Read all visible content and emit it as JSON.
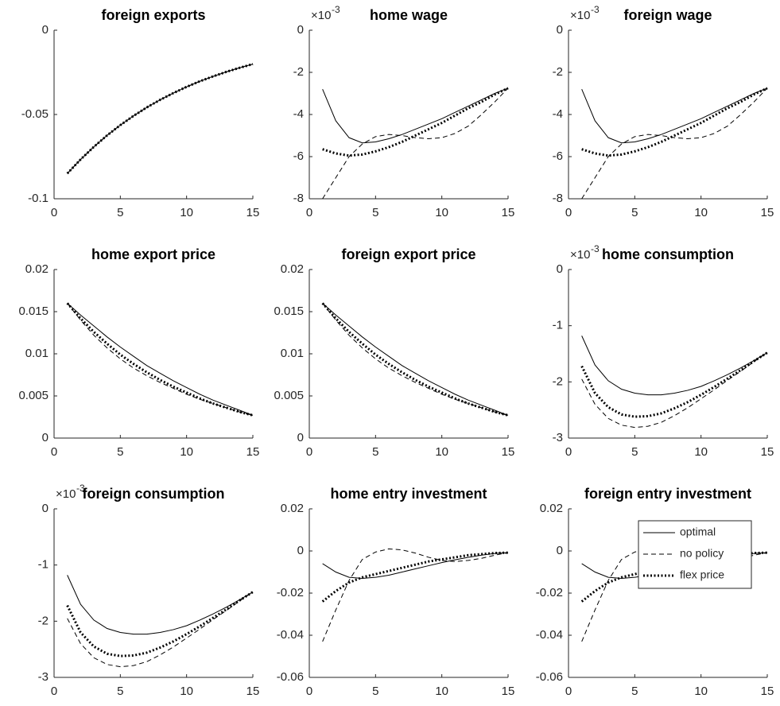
{
  "chart_data": [
    {
      "type": "line",
      "title": "foreign exports",
      "x": [
        1,
        2,
        3,
        4,
        5,
        6,
        7,
        8,
        9,
        10,
        11,
        12,
        13,
        14,
        15
      ],
      "xlim": [
        0,
        15
      ],
      "xticks": [
        0,
        5,
        10,
        15
      ],
      "ylim": [
        -0.1,
        0
      ],
      "yticks": [
        -0.1,
        -0.05,
        0
      ],
      "series": [
        {
          "name": "optimal",
          "color": "#000000",
          "dash": "solid",
          "width": 1,
          "values": [
            -0.085,
            -0.0767,
            -0.0692,
            -0.0624,
            -0.0563,
            -0.0508,
            -0.0458,
            -0.0413,
            -0.0373,
            -0.0336,
            -0.0303,
            -0.0274,
            -0.0247,
            -0.0223,
            -0.0201
          ]
        },
        {
          "name": "no policy",
          "color": "#000000",
          "dash": "dashed",
          "width": 1,
          "values": [
            -0.085,
            -0.0767,
            -0.0692,
            -0.0624,
            -0.0563,
            -0.0508,
            -0.0458,
            -0.0413,
            -0.0373,
            -0.0336,
            -0.0303,
            -0.0274,
            -0.0247,
            -0.0223,
            -0.0201
          ]
        },
        {
          "name": "flex price",
          "color": "#000000",
          "dash": "dotted",
          "width": 3,
          "values": [
            -0.085,
            -0.0767,
            -0.0692,
            -0.0624,
            -0.0563,
            -0.0508,
            -0.0458,
            -0.0413,
            -0.0373,
            -0.0336,
            -0.0303,
            -0.0274,
            -0.0247,
            -0.0223,
            -0.0201
          ]
        }
      ]
    },
    {
      "type": "line",
      "title": "home wage",
      "y_exponent": {
        "base": "×10",
        "power": "-3"
      },
      "x": [
        1,
        2,
        3,
        4,
        5,
        6,
        7,
        8,
        9,
        10,
        11,
        12,
        13,
        14,
        15
      ],
      "xlim": [
        0,
        15
      ],
      "xticks": [
        0,
        5,
        10,
        15
      ],
      "ylim": [
        -8,
        0
      ],
      "yticks": [
        -8,
        -6,
        -4,
        -2,
        0
      ],
      "series": [
        {
          "name": "optimal",
          "color": "#000000",
          "dash": "solid",
          "width": 1,
          "values": [
            -2.8,
            -4.3,
            -5.1,
            -5.35,
            -5.3,
            -5.15,
            -4.95,
            -4.7,
            -4.45,
            -4.2,
            -3.9,
            -3.6,
            -3.3,
            -3.0,
            -2.75
          ]
        },
        {
          "name": "no policy",
          "color": "#000000",
          "dash": "dashed",
          "width": 1,
          "values": [
            -8.0,
            -7.0,
            -6.0,
            -5.4,
            -5.05,
            -4.95,
            -5.0,
            -5.1,
            -5.15,
            -5.1,
            -4.9,
            -4.55,
            -4.0,
            -3.4,
            -2.75
          ]
        },
        {
          "name": "flex price",
          "color": "#000000",
          "dash": "dotted",
          "width": 3,
          "values": [
            -5.65,
            -5.85,
            -5.95,
            -5.9,
            -5.75,
            -5.55,
            -5.3,
            -5.0,
            -4.7,
            -4.4,
            -4.05,
            -3.7,
            -3.4,
            -3.05,
            -2.75
          ]
        }
      ]
    },
    {
      "type": "line",
      "title": "foreign wage",
      "y_exponent": {
        "base": "×10",
        "power": "-3"
      },
      "x": [
        1,
        2,
        3,
        4,
        5,
        6,
        7,
        8,
        9,
        10,
        11,
        12,
        13,
        14,
        15
      ],
      "xlim": [
        0,
        15
      ],
      "xticks": [
        0,
        5,
        10,
        15
      ],
      "ylim": [
        -8,
        0
      ],
      "yticks": [
        -8,
        -6,
        -4,
        -2,
        0
      ],
      "series": [
        {
          "name": "optimal",
          "color": "#000000",
          "dash": "solid",
          "width": 1,
          "values": [
            -2.8,
            -4.3,
            -5.1,
            -5.35,
            -5.3,
            -5.15,
            -4.95,
            -4.7,
            -4.45,
            -4.2,
            -3.9,
            -3.6,
            -3.3,
            -3.0,
            -2.75
          ]
        },
        {
          "name": "no policy",
          "color": "#000000",
          "dash": "dashed",
          "width": 1,
          "values": [
            -8.0,
            -7.0,
            -6.0,
            -5.4,
            -5.05,
            -4.95,
            -5.0,
            -5.1,
            -5.15,
            -5.1,
            -4.9,
            -4.55,
            -4.0,
            -3.4,
            -2.75
          ]
        },
        {
          "name": "flex price",
          "color": "#000000",
          "dash": "dotted",
          "width": 3,
          "values": [
            -5.65,
            -5.85,
            -5.95,
            -5.9,
            -5.75,
            -5.55,
            -5.3,
            -5.0,
            -4.7,
            -4.4,
            -4.05,
            -3.7,
            -3.4,
            -3.05,
            -2.75
          ]
        }
      ]
    },
    {
      "type": "line",
      "title": "home export price",
      "x": [
        1,
        2,
        3,
        4,
        5,
        6,
        7,
        8,
        9,
        10,
        11,
        12,
        13,
        14,
        15
      ],
      "xlim": [
        0,
        15
      ],
      "xticks": [
        0,
        5,
        10,
        15
      ],
      "ylim": [
        0,
        0.02
      ],
      "yticks": [
        0,
        0.005,
        0.01,
        0.015,
        0.02
      ],
      "series": [
        {
          "name": "optimal",
          "color": "#000000",
          "dash": "solid",
          "width": 1,
          "values": [
            0.016,
            0.0146,
            0.0133,
            0.012,
            0.0108,
            0.0097,
            0.0086,
            0.0077,
            0.0068,
            0.006,
            0.0052,
            0.0045,
            0.0039,
            0.0033,
            0.0027
          ]
        },
        {
          "name": "no policy",
          "color": "#000000",
          "dash": "dashed",
          "width": 1,
          "values": [
            0.016,
            0.014,
            0.0122,
            0.0107,
            0.0094,
            0.0083,
            0.0074,
            0.0066,
            0.0059,
            0.0052,
            0.0046,
            0.0041,
            0.0036,
            0.0031,
            0.0027
          ]
        },
        {
          "name": "flex price",
          "color": "#000000",
          "dash": "dotted",
          "width": 3,
          "values": [
            0.016,
            0.0142,
            0.0126,
            0.0112,
            0.0099,
            0.0088,
            0.0078,
            0.0069,
            0.0061,
            0.0054,
            0.0047,
            0.0041,
            0.0036,
            0.0031,
            0.0027
          ]
        }
      ]
    },
    {
      "type": "line",
      "title": "foreign export price",
      "x": [
        1,
        2,
        3,
        4,
        5,
        6,
        7,
        8,
        9,
        10,
        11,
        12,
        13,
        14,
        15
      ],
      "xlim": [
        0,
        15
      ],
      "xticks": [
        0,
        5,
        10,
        15
      ],
      "ylim": [
        0,
        0.02
      ],
      "yticks": [
        0,
        0.005,
        0.01,
        0.015,
        0.02
      ],
      "series": [
        {
          "name": "optimal",
          "color": "#000000",
          "dash": "solid",
          "width": 1,
          "values": [
            0.016,
            0.0146,
            0.0133,
            0.012,
            0.0108,
            0.0097,
            0.0086,
            0.0077,
            0.0068,
            0.006,
            0.0052,
            0.0045,
            0.0039,
            0.0033,
            0.0027
          ]
        },
        {
          "name": "no policy",
          "color": "#000000",
          "dash": "dashed",
          "width": 1,
          "values": [
            0.016,
            0.014,
            0.0122,
            0.0107,
            0.0094,
            0.0083,
            0.0074,
            0.0066,
            0.0059,
            0.0052,
            0.0046,
            0.0041,
            0.0036,
            0.0031,
            0.0027
          ]
        },
        {
          "name": "flex price",
          "color": "#000000",
          "dash": "dotted",
          "width": 3,
          "values": [
            0.016,
            0.0142,
            0.0126,
            0.0112,
            0.0099,
            0.0088,
            0.0078,
            0.0069,
            0.0061,
            0.0054,
            0.0047,
            0.0041,
            0.0036,
            0.0031,
            0.0027
          ]
        }
      ]
    },
    {
      "type": "line",
      "title": "home consumption",
      "y_exponent": {
        "base": "×10",
        "power": "-3"
      },
      "x": [
        1,
        2,
        3,
        4,
        5,
        6,
        7,
        8,
        9,
        10,
        11,
        12,
        13,
        14,
        15
      ],
      "xlim": [
        0,
        15
      ],
      "xticks": [
        0,
        5,
        10,
        15
      ],
      "ylim": [
        -3,
        0
      ],
      "yticks": [
        -3,
        -2,
        -1,
        0
      ],
      "series": [
        {
          "name": "optimal",
          "color": "#000000",
          "dash": "solid",
          "width": 1,
          "values": [
            -1.18,
            -1.7,
            -1.98,
            -2.13,
            -2.2,
            -2.23,
            -2.23,
            -2.2,
            -2.15,
            -2.08,
            -1.98,
            -1.87,
            -1.75,
            -1.62,
            -1.48
          ]
        },
        {
          "name": "no policy",
          "color": "#000000",
          "dash": "dashed",
          "width": 1,
          "values": [
            -1.95,
            -2.4,
            -2.65,
            -2.77,
            -2.81,
            -2.79,
            -2.72,
            -2.6,
            -2.46,
            -2.3,
            -2.14,
            -1.97,
            -1.81,
            -1.64,
            -1.48
          ]
        },
        {
          "name": "flex price",
          "color": "#000000",
          "dash": "dotted",
          "width": 3,
          "values": [
            -1.72,
            -2.2,
            -2.45,
            -2.58,
            -2.62,
            -2.61,
            -2.56,
            -2.47,
            -2.36,
            -2.23,
            -2.09,
            -1.94,
            -1.79,
            -1.63,
            -1.48
          ]
        }
      ]
    },
    {
      "type": "line",
      "title": "foreign consumption",
      "y_exponent": {
        "base": "×10",
        "power": "-3"
      },
      "x": [
        1,
        2,
        3,
        4,
        5,
        6,
        7,
        8,
        9,
        10,
        11,
        12,
        13,
        14,
        15
      ],
      "xlim": [
        0,
        15
      ],
      "xticks": [
        0,
        5,
        10,
        15
      ],
      "ylim": [
        -3,
        0
      ],
      "yticks": [
        -3,
        -2,
        -1,
        0
      ],
      "series": [
        {
          "name": "optimal",
          "color": "#000000",
          "dash": "solid",
          "width": 1,
          "values": [
            -1.18,
            -1.7,
            -1.98,
            -2.13,
            -2.2,
            -2.23,
            -2.23,
            -2.2,
            -2.15,
            -2.08,
            -1.98,
            -1.87,
            -1.75,
            -1.62,
            -1.48
          ]
        },
        {
          "name": "no policy",
          "color": "#000000",
          "dash": "dashed",
          "width": 1,
          "values": [
            -1.95,
            -2.4,
            -2.65,
            -2.77,
            -2.81,
            -2.79,
            -2.72,
            -2.6,
            -2.46,
            -2.3,
            -2.14,
            -1.97,
            -1.81,
            -1.64,
            -1.48
          ]
        },
        {
          "name": "flex price",
          "color": "#000000",
          "dash": "dotted",
          "width": 3,
          "values": [
            -1.72,
            -2.2,
            -2.45,
            -2.58,
            -2.62,
            -2.61,
            -2.56,
            -2.47,
            -2.36,
            -2.23,
            -2.09,
            -1.94,
            -1.79,
            -1.63,
            -1.48
          ]
        }
      ]
    },
    {
      "type": "line",
      "title": "home entry investment",
      "x": [
        1,
        2,
        3,
        4,
        5,
        6,
        7,
        8,
        9,
        10,
        11,
        12,
        13,
        14,
        15
      ],
      "xlim": [
        0,
        15
      ],
      "xticks": [
        0,
        5,
        10,
        15
      ],
      "ylim": [
        -0.06,
        0.02
      ],
      "yticks": [
        -0.06,
        -0.04,
        -0.02,
        0,
        0.02
      ],
      "series": [
        {
          "name": "optimal",
          "color": "#000000",
          "dash": "solid",
          "width": 1,
          "values": [
            -0.006,
            -0.01,
            -0.0125,
            -0.013,
            -0.0125,
            -0.0115,
            -0.01,
            -0.0085,
            -0.007,
            -0.0055,
            -0.0042,
            -0.003,
            -0.002,
            -0.0012,
            -0.0008
          ]
        },
        {
          "name": "no policy",
          "color": "#000000",
          "dash": "dashed",
          "width": 1,
          "values": [
            -0.043,
            -0.028,
            -0.014,
            -0.004,
            -0.0005,
            0.001,
            0.0005,
            -0.001,
            -0.003,
            -0.0045,
            -0.005,
            -0.0045,
            -0.0035,
            -0.002,
            -0.0008
          ]
        },
        {
          "name": "flex price",
          "color": "#000000",
          "dash": "dotted",
          "width": 3,
          "values": [
            -0.024,
            -0.019,
            -0.015,
            -0.0125,
            -0.011,
            -0.0095,
            -0.008,
            -0.0065,
            -0.005,
            -0.004,
            -0.003,
            -0.002,
            -0.0015,
            -0.001,
            -0.0008
          ]
        }
      ]
    },
    {
      "type": "line",
      "title": "foreign entry investment",
      "legend": "northeast",
      "x": [
        1,
        2,
        3,
        4,
        5,
        6,
        7,
        8,
        9,
        10,
        11,
        12,
        13,
        14,
        15
      ],
      "xlim": [
        0,
        15
      ],
      "xticks": [
        0,
        5,
        10,
        15
      ],
      "ylim": [
        -0.06,
        0.02
      ],
      "yticks": [
        -0.06,
        -0.04,
        -0.02,
        0,
        0.02
      ],
      "series": [
        {
          "name": "optimal",
          "color": "#000000",
          "dash": "solid",
          "width": 1,
          "values": [
            -0.006,
            -0.01,
            -0.0125,
            -0.013,
            -0.0125,
            -0.0115,
            -0.01,
            -0.0085,
            -0.007,
            -0.0055,
            -0.0042,
            -0.003,
            -0.002,
            -0.0012,
            -0.0008
          ]
        },
        {
          "name": "no policy",
          "color": "#000000",
          "dash": "dashed",
          "width": 1,
          "values": [
            -0.043,
            -0.028,
            -0.014,
            -0.004,
            -0.0005,
            0.001,
            0.0005,
            -0.001,
            -0.003,
            -0.0045,
            -0.005,
            -0.0045,
            -0.0035,
            -0.002,
            -0.0008
          ]
        },
        {
          "name": "flex price",
          "color": "#000000",
          "dash": "dotted",
          "width": 3,
          "values": [
            -0.024,
            -0.019,
            -0.015,
            -0.0125,
            -0.011,
            -0.0095,
            -0.008,
            -0.0065,
            -0.005,
            -0.004,
            -0.003,
            -0.002,
            -0.0015,
            -0.001,
            -0.0008
          ]
        }
      ]
    }
  ]
}
